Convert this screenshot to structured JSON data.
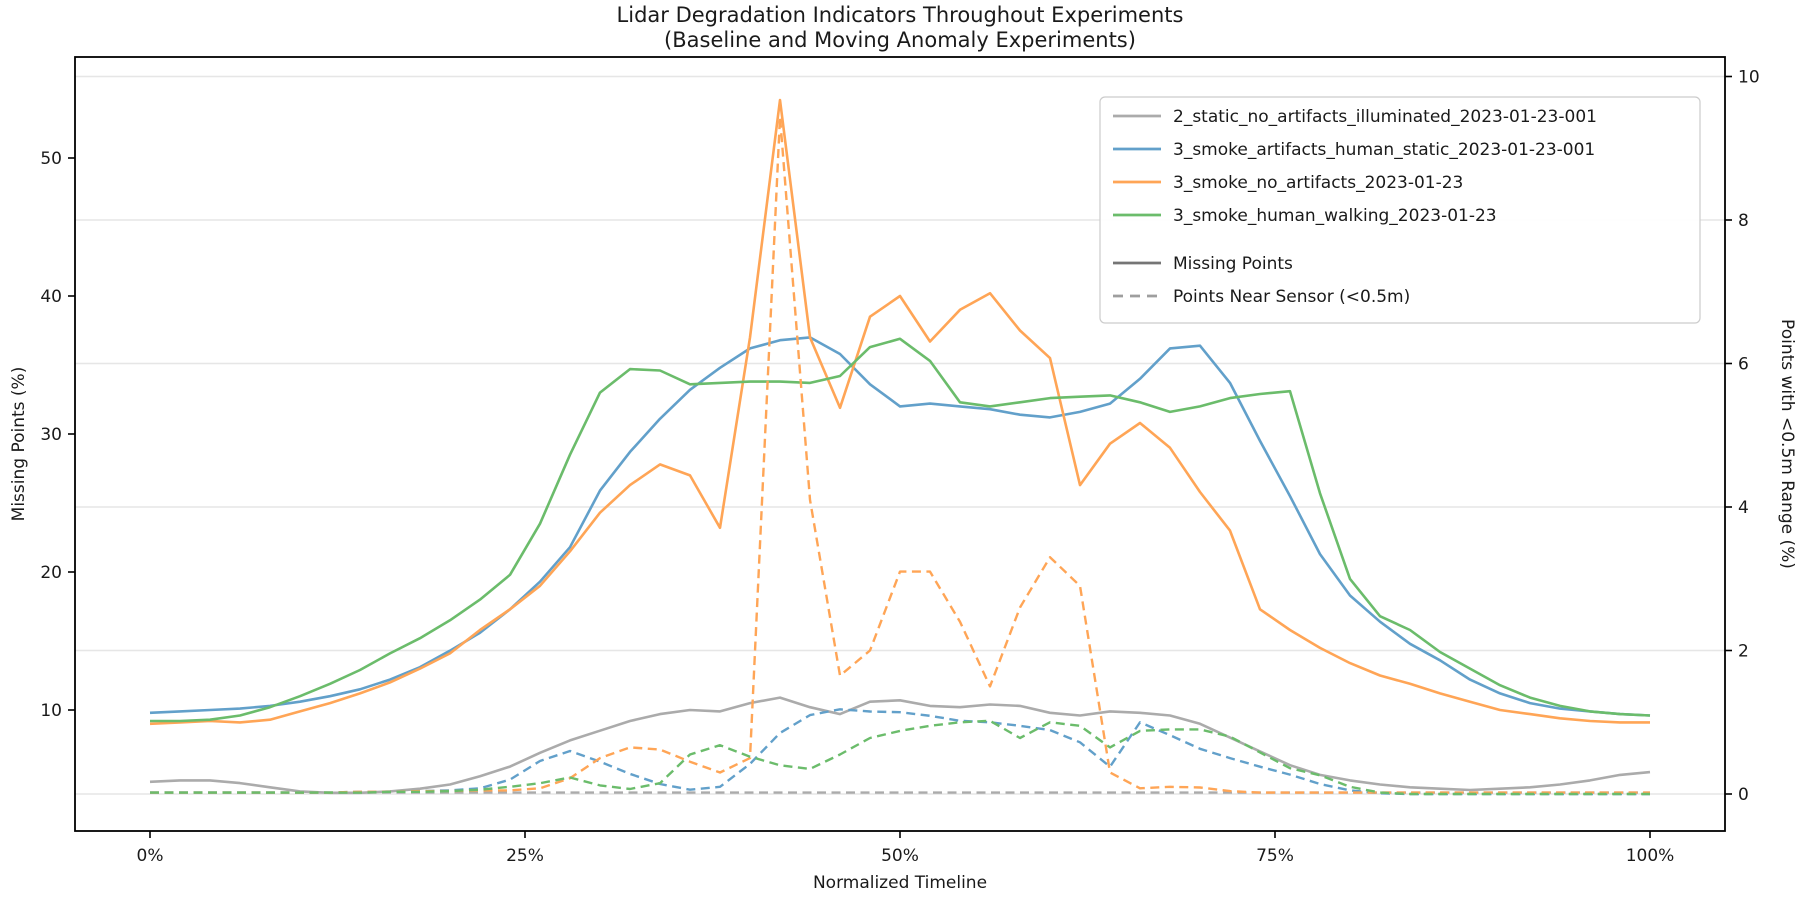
{
  "chart_data": {
    "type": "line",
    "title": "Lidar Degradation Indicators Throughout Experiments",
    "subtitle": "(Baseline and Moving Anomaly Experiments)",
    "xlabel": "Normalized Timeline",
    "ylabel_left": "Missing Points (%)",
    "ylabel_right": "Points with <0.5m Range (%)",
    "legend_position": "upper right",
    "grid": "horizontal gridlines aligned to right-axis ticks",
    "x_ticks": [
      {
        "pos": 0,
        "label": "0%"
      },
      {
        "pos": 25,
        "label": "25%"
      },
      {
        "pos": 50,
        "label": "50%"
      },
      {
        "pos": 75,
        "label": "75%"
      },
      {
        "pos": 100,
        "label": "100%"
      }
    ],
    "left_axis": {
      "ticks": [
        10,
        20,
        30,
        40,
        50
      ]
    },
    "right_axis": {
      "ticks": [
        0,
        2,
        4,
        6,
        8,
        10
      ]
    },
    "x": [
      0,
      2,
      4,
      6,
      8,
      10,
      12,
      14,
      16,
      18,
      20,
      22,
      24,
      26,
      28,
      30,
      32,
      34,
      36,
      38,
      40,
      42,
      44,
      46,
      48,
      50,
      52,
      54,
      56,
      58,
      60,
      62,
      64,
      66,
      68,
      70,
      72,
      74,
      76,
      78,
      80,
      82,
      84,
      86,
      88,
      90,
      92,
      94,
      96,
      98,
      100
    ],
    "series": [
      {
        "name": "2_static_no_artifacts_illuminated_2023-01-23-001",
        "metric": "Missing Points",
        "axis": "left",
        "style": "solid",
        "color": "#ababab",
        "values": [
          4.8,
          4.9,
          4.9,
          4.7,
          4.4,
          4.1,
          4.0,
          4.0,
          4.1,
          4.3,
          4.6,
          5.2,
          5.9,
          6.9,
          7.8,
          8.5,
          9.2,
          9.7,
          10.0,
          9.9,
          10.5,
          10.9,
          10.2,
          9.7,
          10.6,
          10.7,
          10.3,
          10.2,
          10.4,
          10.3,
          9.8,
          9.6,
          9.9,
          9.8,
          9.6,
          9.0,
          8.0,
          7.0,
          6.0,
          5.3,
          4.9,
          4.6,
          4.4,
          4.3,
          4.2,
          4.3,
          4.4,
          4.6,
          4.9,
          5.3,
          5.5
        ]
      },
      {
        "name": "3_smoke_artifacts_human_static_2023-01-23-001",
        "metric": "Missing Points",
        "axis": "left",
        "style": "solid",
        "color": "#62a0ca",
        "values": [
          9.8,
          9.9,
          10.0,
          10.1,
          10.3,
          10.6,
          11.0,
          11.5,
          12.2,
          13.1,
          14.3,
          15.6,
          17.3,
          19.3,
          21.8,
          25.9,
          28.7,
          31.1,
          33.2,
          34.8,
          36.2,
          36.8,
          37.0,
          35.8,
          33.6,
          32.0,
          32.2,
          32.0,
          31.8,
          31.4,
          31.2,
          31.6,
          32.2,
          34.0,
          36.2,
          36.4,
          33.7,
          29.5,
          25.5,
          21.3,
          18.3,
          16.4,
          14.8,
          13.6,
          12.2,
          11.2,
          10.5,
          10.1,
          9.9,
          9.7,
          9.6
        ]
      },
      {
        "name": "3_smoke_no_artifacts_2023-01-23",
        "metric": "Missing Points",
        "axis": "left",
        "style": "solid",
        "color": "#ffa556",
        "values": [
          9.0,
          9.1,
          9.2,
          9.1,
          9.3,
          9.9,
          10.5,
          11.2,
          12.0,
          13.0,
          14.1,
          15.8,
          17.3,
          19.0,
          21.5,
          24.3,
          26.3,
          27.8,
          27.0,
          23.2,
          37.0,
          54.2,
          37.0,
          31.9,
          38.5,
          40.0,
          36.7,
          39.0,
          40.2,
          37.5,
          35.5,
          26.3,
          29.3,
          30.8,
          29.0,
          25.8,
          23.0,
          17.3,
          15.8,
          14.5,
          13.4,
          12.5,
          11.9,
          11.2,
          10.6,
          10.0,
          9.7,
          9.4,
          9.2,
          9.1,
          9.1
        ]
      },
      {
        "name": "3_smoke_human_walking_2023-01-23",
        "metric": "Missing Points",
        "axis": "left",
        "style": "solid",
        "color": "#6bbc6b",
        "values": [
          9.2,
          9.2,
          9.3,
          9.6,
          10.2,
          11.0,
          11.9,
          12.9,
          14.1,
          15.2,
          16.5,
          18.0,
          19.8,
          23.5,
          28.5,
          33.0,
          34.7,
          34.6,
          33.6,
          33.7,
          33.8,
          33.8,
          33.7,
          34.2,
          36.3,
          36.9,
          35.3,
          32.3,
          32.0,
          32.3,
          32.6,
          32.7,
          32.8,
          32.3,
          31.6,
          32.0,
          32.6,
          32.9,
          33.1,
          25.7,
          19.5,
          16.8,
          15.8,
          14.2,
          13.0,
          11.8,
          10.9,
          10.3,
          9.9,
          9.7,
          9.6
        ]
      },
      {
        "name": "2_static_no_artifacts_illuminated_2023-01-23-001",
        "metric": "Points Near Sensor (<0.5m)",
        "axis": "right",
        "style": "dashed",
        "color": "#ababab",
        "values": [
          0.02,
          0.02,
          0.02,
          0.02,
          0.02,
          0.02,
          0.02,
          0.02,
          0.02,
          0.02,
          0.02,
          0.02,
          0.02,
          0.02,
          0.02,
          0.02,
          0.02,
          0.02,
          0.02,
          0.02,
          0.02,
          0.02,
          0.02,
          0.02,
          0.02,
          0.02,
          0.02,
          0.02,
          0.02,
          0.02,
          0.02,
          0.02,
          0.02,
          0.02,
          0.02,
          0.02,
          0.02,
          0.02,
          0.02,
          0.02,
          0.02,
          0.02,
          0.02,
          0.02,
          0.02,
          0.02,
          0.02,
          0.02,
          0.02,
          0.02,
          0.02
        ]
      },
      {
        "name": "3_smoke_artifacts_human_static_2023-01-23-001",
        "metric": "Points Near Sensor (<0.5m)",
        "axis": "right",
        "style": "dashed",
        "color": "#62a0ca",
        "values": [
          0.02,
          0.02,
          0.02,
          0.02,
          0.02,
          0.02,
          0.02,
          0.03,
          0.03,
          0.04,
          0.05,
          0.08,
          0.2,
          0.46,
          0.6,
          0.45,
          0.28,
          0.14,
          0.06,
          0.1,
          0.42,
          0.85,
          1.1,
          1.18,
          1.15,
          1.14,
          1.09,
          1.02,
          1.0,
          0.95,
          0.89,
          0.72,
          0.38,
          1.0,
          0.82,
          0.63,
          0.5,
          0.38,
          0.27,
          0.14,
          0.05,
          0.01,
          0,
          0,
          0,
          0,
          0,
          0,
          0,
          0,
          0
        ]
      },
      {
        "name": "3_smoke_no_artifacts_2023-01-23",
        "metric": "Points Near Sensor (<0.5m)",
        "axis": "right",
        "style": "dashed",
        "color": "#ffa556",
        "values": [
          0.02,
          0.02,
          0.02,
          0.02,
          0.02,
          0.02,
          0.02,
          0.03,
          0.03,
          0.04,
          0.04,
          0.05,
          0.05,
          0.08,
          0.22,
          0.5,
          0.65,
          0.62,
          0.45,
          0.3,
          0.5,
          9.44,
          4.1,
          1.65,
          2.0,
          3.1,
          3.1,
          2.4,
          1.5,
          2.6,
          3.3,
          2.9,
          0.3,
          0.08,
          0.1,
          0.09,
          0.04,
          0.02,
          0.02,
          0.02,
          0.02,
          0.02,
          0.02,
          0.02,
          0.02,
          0.02,
          0.02,
          0.02,
          0.02,
          0.02,
          0.02
        ]
      },
      {
        "name": "3_smoke_human_walking_2023-01-23",
        "metric": "Points Near Sensor (<0.5m)",
        "axis": "right",
        "style": "dashed",
        "color": "#6bbc6b",
        "values": [
          0.02,
          0.02,
          0.02,
          0.02,
          0.02,
          0.02,
          0.02,
          0.02,
          0.03,
          0.03,
          0.04,
          0.06,
          0.1,
          0.15,
          0.23,
          0.12,
          0.07,
          0.15,
          0.55,
          0.68,
          0.52,
          0.4,
          0.35,
          0.55,
          0.78,
          0.88,
          0.95,
          1.0,
          1.02,
          0.78,
          1.0,
          0.95,
          0.65,
          0.88,
          0.9,
          0.9,
          0.8,
          0.58,
          0.36,
          0.26,
          0.1,
          0.02,
          0,
          0,
          0,
          0,
          0,
          0,
          0,
          0,
          0
        ]
      }
    ],
    "legend_experiments": [
      {
        "label": "2_static_no_artifacts_illuminated_2023-01-23-001",
        "color": "#ababab"
      },
      {
        "label": "3_smoke_artifacts_human_static_2023-01-23-001",
        "color": "#62a0ca"
      },
      {
        "label": "3_smoke_no_artifacts_2023-01-23",
        "color": "#ffa556"
      },
      {
        "label": "3_smoke_human_walking_2023-01-23",
        "color": "#6bbc6b"
      }
    ],
    "legend_styles": [
      {
        "label": "Missing Points",
        "style": "solid",
        "color": "#757575"
      },
      {
        "label": "Points Near Sensor (<0.5m)",
        "style": "dashed",
        "color": "#9e9e9e"
      }
    ]
  },
  "colors": {
    "background": "#ffffff",
    "frame": "#000000",
    "gridline": "#e6e6e6",
    "legend_border": "#cccccc",
    "text": "#1a1a1a"
  }
}
